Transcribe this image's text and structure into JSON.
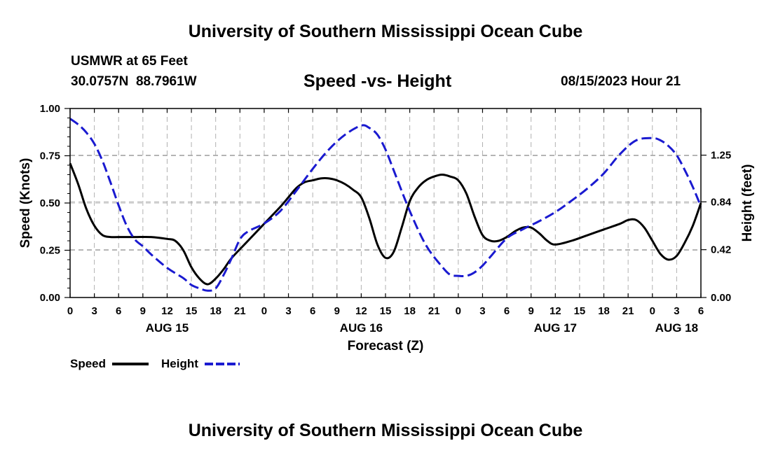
{
  "header": {
    "title": "University of Southern Mississippi Ocean Cube",
    "station": "USMWR at 65 Feet",
    "coords": "30.0757N  88.7961W",
    "datetime": "08/15/2023 Hour 21",
    "footer_title": "University of Southern Mississippi Ocean Cube"
  },
  "legend": {
    "speed_label": "Speed",
    "height_label": "Height"
  },
  "colors": {
    "speed": "#000000",
    "height": "#1a1ad0",
    "grid": "#b0b0b0"
  },
  "chart_data": {
    "type": "line",
    "title": "Speed -vs- Height",
    "xlabel": "Forecast (Z)",
    "ylabel": "Speed (Knots)",
    "y2label": "Height (feet)",
    "x_range": [
      0,
      78
    ],
    "ylim": [
      0,
      1.0
    ],
    "y2lim": [
      0,
      1.66
    ],
    "x_ticks": [
      {
        "x": 0,
        "label": "0"
      },
      {
        "x": 3,
        "label": "3"
      },
      {
        "x": 6,
        "label": "6"
      },
      {
        "x": 9,
        "label": "9"
      },
      {
        "x": 12,
        "label": "12"
      },
      {
        "x": 15,
        "label": "15"
      },
      {
        "x": 18,
        "label": "18"
      },
      {
        "x": 21,
        "label": "21"
      },
      {
        "x": 24,
        "label": "0"
      },
      {
        "x": 27,
        "label": "3"
      },
      {
        "x": 30,
        "label": "6"
      },
      {
        "x": 33,
        "label": "9"
      },
      {
        "x": 36,
        "label": "12"
      },
      {
        "x": 39,
        "label": "15"
      },
      {
        "x": 42,
        "label": "18"
      },
      {
        "x": 45,
        "label": "21"
      },
      {
        "x": 48,
        "label": "0"
      },
      {
        "x": 51,
        "label": "3"
      },
      {
        "x": 54,
        "label": "6"
      },
      {
        "x": 57,
        "label": "9"
      },
      {
        "x": 60,
        "label": "12"
      },
      {
        "x": 63,
        "label": "15"
      },
      {
        "x": 66,
        "label": "18"
      },
      {
        "x": 69,
        "label": "21"
      },
      {
        "x": 72,
        "label": "0"
      },
      {
        "x": 75,
        "label": "3"
      },
      {
        "x": 78,
        "label": "6"
      }
    ],
    "date_labels": [
      {
        "x": 12,
        "label": "AUG 15"
      },
      {
        "x": 36,
        "label": "AUG 16"
      },
      {
        "x": 60,
        "label": "AUG 17"
      },
      {
        "x": 75,
        "label": "AUG 18"
      }
    ],
    "y_ticks": [
      0.0,
      0.25,
      0.5,
      0.75,
      1.0
    ],
    "y_tick_labels": [
      "0.00",
      "0.25",
      "0.50",
      "0.75",
      "1.00"
    ],
    "y2_ticks": [
      0.0,
      0.42,
      0.84,
      1.25
    ],
    "y2_tick_labels": [
      "0.00",
      "0.42",
      "0.84",
      "1.25"
    ],
    "series": [
      {
        "name": "Speed",
        "axis": "left",
        "x": [
          0,
          1,
          2,
          3,
          4,
          5,
          6,
          8,
          10,
          12,
          13,
          14,
          15,
          16,
          17,
          18,
          19,
          20,
          22,
          24,
          26,
          27,
          28,
          29,
          30,
          31,
          32,
          33,
          34,
          35,
          36,
          37,
          38,
          39,
          40,
          41,
          42,
          43,
          44,
          45,
          46,
          47,
          48,
          49,
          50,
          51,
          52,
          53,
          54,
          55,
          56,
          57,
          58,
          59,
          60,
          62,
          64,
          66,
          68,
          69,
          70,
          71,
          72,
          73,
          74,
          75,
          76,
          77,
          78
        ],
        "values": [
          0.71,
          0.6,
          0.47,
          0.38,
          0.33,
          0.32,
          0.32,
          0.32,
          0.32,
          0.31,
          0.3,
          0.25,
          0.16,
          0.1,
          0.07,
          0.1,
          0.15,
          0.21,
          0.3,
          0.39,
          0.48,
          0.53,
          0.58,
          0.61,
          0.62,
          0.63,
          0.63,
          0.62,
          0.6,
          0.57,
          0.53,
          0.42,
          0.28,
          0.21,
          0.24,
          0.37,
          0.51,
          0.58,
          0.62,
          0.64,
          0.65,
          0.64,
          0.62,
          0.55,
          0.43,
          0.33,
          0.3,
          0.3,
          0.32,
          0.35,
          0.37,
          0.37,
          0.34,
          0.3,
          0.28,
          0.3,
          0.33,
          0.36,
          0.39,
          0.41,
          0.41,
          0.37,
          0.3,
          0.23,
          0.2,
          0.22,
          0.29,
          0.38,
          0.5
        ]
      },
      {
        "name": "Height",
        "axis": "right",
        "x": [
          0,
          1,
          2,
          3,
          4,
          5,
          6,
          7,
          8,
          9,
          10,
          12,
          14,
          15,
          16,
          17,
          18,
          19,
          20,
          21,
          22,
          24,
          26,
          28,
          30,
          32,
          34,
          36,
          37,
          38,
          39,
          40,
          42,
          44,
          46,
          47,
          48,
          49,
          50,
          51,
          52,
          54,
          56,
          58,
          60,
          62,
          64,
          66,
          68,
          70,
          72,
          73,
          74,
          75,
          76,
          77,
          78
        ],
        "values": [
          1.57,
          1.52,
          1.45,
          1.35,
          1.2,
          1.01,
          0.81,
          0.63,
          0.51,
          0.45,
          0.38,
          0.26,
          0.17,
          0.11,
          0.08,
          0.06,
          0.08,
          0.2,
          0.35,
          0.51,
          0.58,
          0.65,
          0.76,
          0.94,
          1.13,
          1.3,
          1.43,
          1.51,
          1.49,
          1.43,
          1.3,
          1.12,
          0.76,
          0.46,
          0.27,
          0.2,
          0.19,
          0.19,
          0.22,
          0.28,
          0.36,
          0.52,
          0.6,
          0.67,
          0.75,
          0.85,
          0.96,
          1.09,
          1.26,
          1.38,
          1.4,
          1.38,
          1.33,
          1.25,
          1.12,
          0.97,
          0.8
        ]
      }
    ]
  }
}
